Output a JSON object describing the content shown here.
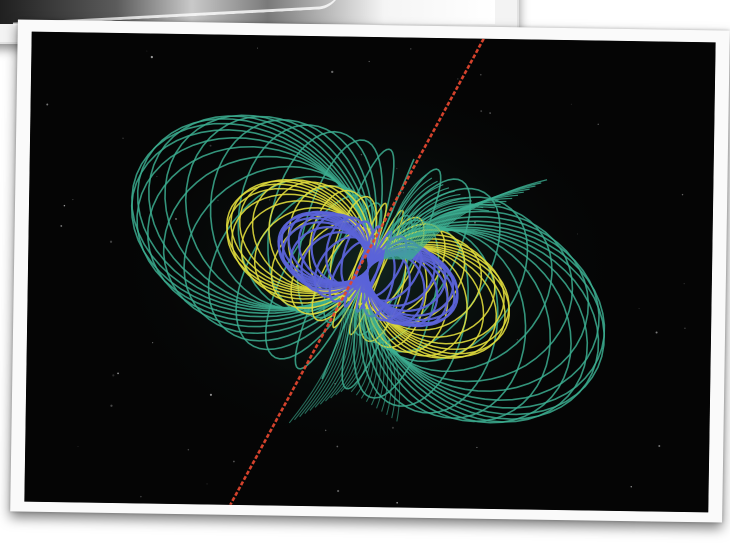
{
  "scene": {
    "subject": "",
    "colors": {
      "background": "#050505",
      "outer_field_lines": "#3cae91",
      "middle_field_lines": "#e0dc3c",
      "inner_field_lines": "#5b63d8",
      "axis": "#e0462f",
      "frame": "#fafafa"
    },
    "icons": []
  }
}
